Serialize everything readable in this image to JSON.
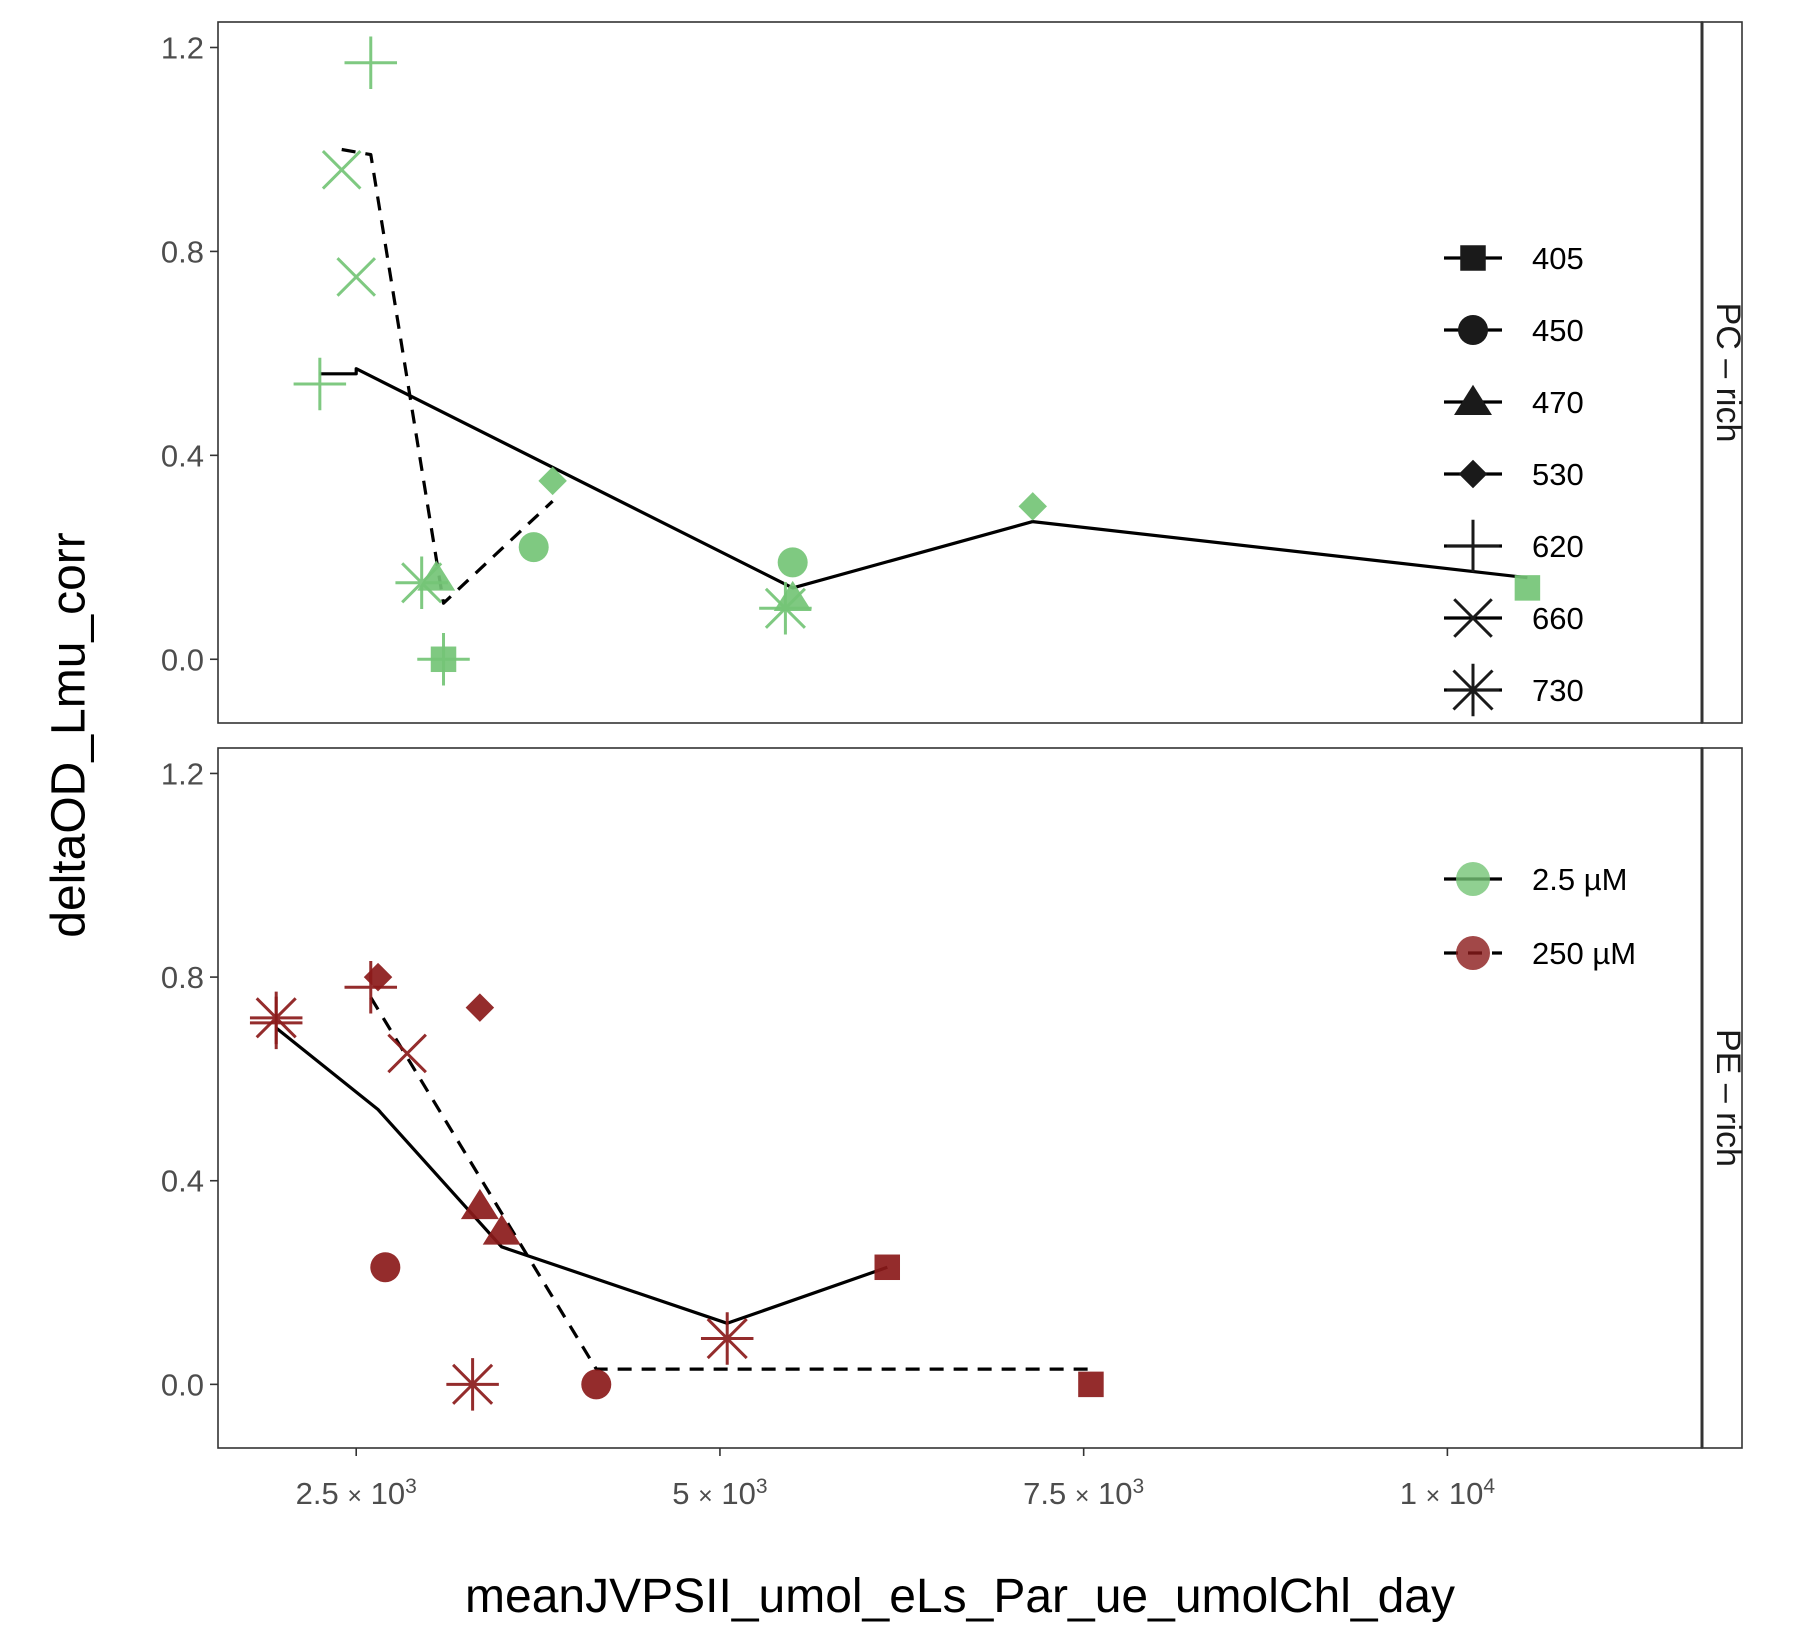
{
  "chart_data": {
    "type": "scatter",
    "xlabel": "meanJVPSII_umol_eLs_Par_ue_umolChl_day",
    "ylabel": "deltaOD_Lmu_corr",
    "xlim": [
      1550,
      11750
    ],
    "ylim": [
      -0.125,
      1.25
    ],
    "x_ticks": [
      {
        "value": 2500,
        "mant": "2.5",
        "exp": "3"
      },
      {
        "value": 5000,
        "mant": "5",
        "exp": "3"
      },
      {
        "value": 7500,
        "mant": "7.5",
        "exp": "3"
      },
      {
        "value": 10000,
        "mant": "1",
        "exp": "4"
      }
    ],
    "times_symbol": "×",
    "base": "10",
    "y_ticks": [
      "0.0",
      "0.4",
      "0.8",
      "1.2"
    ],
    "grid": false,
    "colors": {
      "2.5 µM": "#74c476",
      "250 µM": "#8b1a1a"
    },
    "panels": [
      {
        "strip": "PC – rich",
        "points": [
          {
            "x": 3100,
            "y": 0.0,
            "wl": 405,
            "conc": "2.5 µM"
          },
          {
            "x": 10550,
            "y": 0.14,
            "wl": 405,
            "conc": "2.5 µM"
          },
          {
            "x": 3720,
            "y": 0.22,
            "wl": 450,
            "conc": "2.5 µM"
          },
          {
            "x": 5500,
            "y": 0.19,
            "wl": 450,
            "conc": "2.5 µM"
          },
          {
            "x": 3050,
            "y": 0.16,
            "wl": 470,
            "conc": "2.5 µM"
          },
          {
            "x": 5500,
            "y": 0.12,
            "wl": 470,
            "conc": "2.5 µM"
          },
          {
            "x": 3850,
            "y": 0.35,
            "wl": 530,
            "conc": "2.5 µM"
          },
          {
            "x": 7150,
            "y": 0.3,
            "wl": 530,
            "conc": "2.5 µM"
          },
          {
            "x": 2250,
            "y": 0.54,
            "wl": 620,
            "conc": "2.5 µM"
          },
          {
            "x": 2600,
            "y": 1.17,
            "wl": 620,
            "conc": "2.5 µM"
          },
          {
            "x": 3100,
            "y": 0.0,
            "wl": 620,
            "conc": "2.5 µM"
          },
          {
            "x": 2400,
            "y": 0.96,
            "wl": 660,
            "conc": "2.5 µM"
          },
          {
            "x": 2500,
            "y": 0.75,
            "wl": 660,
            "conc": "2.5 µM"
          },
          {
            "x": 2950,
            "y": 0.15,
            "wl": 730,
            "conc": "2.5 µM"
          },
          {
            "x": 5450,
            "y": 0.1,
            "wl": 730,
            "conc": "2.5 µM"
          }
        ],
        "lines": [
          {
            "conc": "2.5 µM",
            "style": "solid",
            "x": [
              2250,
              2500,
              2500,
              5500,
              7150,
              10550
            ],
            "y": [
              0.56,
              0.56,
              0.57,
              0.14,
              0.27,
              0.16
            ]
          },
          {
            "conc": "250 µM",
            "style": "dashed",
            "x": [
              2400,
              2600,
              3100,
              3850
            ],
            "y": [
              1.0,
              0.99,
              0.11,
              0.31
            ]
          }
        ]
      },
      {
        "strip": "PE – rich",
        "points": [
          {
            "x": 6150,
            "y": 0.23,
            "wl": 405,
            "conc": "250 µM"
          },
          {
            "x": 7550,
            "y": 0.0,
            "wl": 405,
            "conc": "250 µM"
          },
          {
            "x": 2700,
            "y": 0.23,
            "wl": 450,
            "conc": "250 µM"
          },
          {
            "x": 4150,
            "y": 0.0,
            "wl": 450,
            "conc": "250 µM"
          },
          {
            "x": 3350,
            "y": 0.35,
            "wl": 470,
            "conc": "250 µM"
          },
          {
            "x": 3500,
            "y": 0.3,
            "wl": 470,
            "conc": "250 µM"
          },
          {
            "x": 2650,
            "y": 0.8,
            "wl": 530,
            "conc": "250 µM"
          },
          {
            "x": 3350,
            "y": 0.74,
            "wl": 530,
            "conc": "250 µM"
          },
          {
            "x": 1950,
            "y": 0.71,
            "wl": 620,
            "conc": "250 µM"
          },
          {
            "x": 2600,
            "y": 0.78,
            "wl": 620,
            "conc": "250 µM"
          },
          {
            "x": 2850,
            "y": 0.65,
            "wl": 660,
            "conc": "250 µM"
          },
          {
            "x": 1950,
            "y": 0.72,
            "wl": 730,
            "conc": "250 µM"
          },
          {
            "x": 3300,
            "y": 0.0,
            "wl": 730,
            "conc": "250 µM"
          },
          {
            "x": 5050,
            "y": 0.09,
            "wl": 730,
            "conc": "250 µM"
          }
        ],
        "lines": [
          {
            "conc": "2.5 µM",
            "style": "solid",
            "x": [
              1950,
              2650,
              3500,
              5050,
              6150
            ],
            "y": [
              0.7,
              0.54,
              0.27,
              0.12,
              0.23
            ]
          },
          {
            "conc": "250 µM",
            "style": "dashed",
            "x": [
              2600,
              4150,
              7550
            ],
            "y": [
              0.76,
              0.03,
              0.03
            ]
          }
        ]
      }
    ],
    "legends": [
      {
        "type": "shape",
        "position": "right",
        "items": [
          {
            "label": "405",
            "shape": "square"
          },
          {
            "label": "450",
            "shape": "circle"
          },
          {
            "label": "470",
            "shape": "triangle"
          },
          {
            "label": "530",
            "shape": "diamond"
          },
          {
            "label": "620",
            "shape": "plus"
          },
          {
            "label": "660",
            "shape": "cross"
          },
          {
            "label": "730",
            "shape": "asterisk"
          }
        ]
      },
      {
        "type": "color",
        "position": "right",
        "items": [
          {
            "label": " 2.5 µM",
            "color": "#74c476",
            "style": "solid"
          },
          {
            "label": "250 µM",
            "color": "#8b1a1a",
            "style": "dashed"
          }
        ]
      }
    ]
  }
}
